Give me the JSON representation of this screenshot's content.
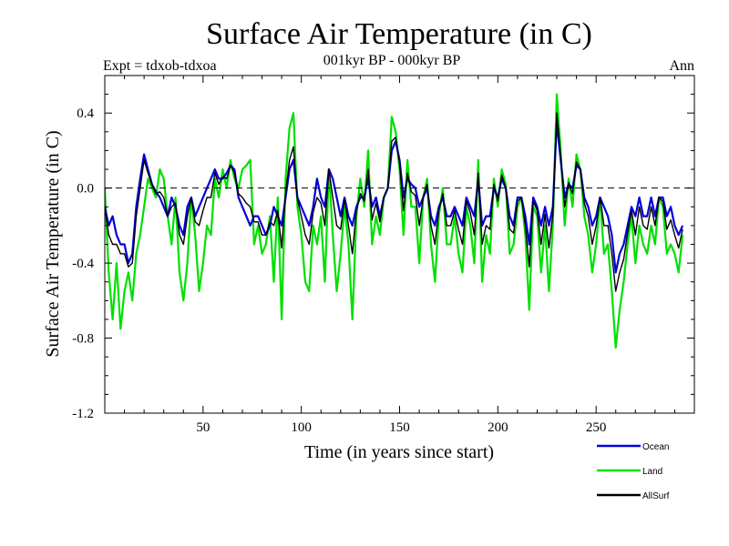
{
  "chart_data": {
    "type": "line",
    "title": "Surface Air Temperature (in C)",
    "subtitle": "001kyr BP - 000kyr BP",
    "left_label": "Expt = tdxob-tdxoa",
    "right_label": "Ann",
    "xlabel": "Time (in years since start)",
    "ylabel": "Surface Air Temperature (in C)",
    "xlim": [
      0,
      300
    ],
    "ylim": [
      -1.2,
      0.6
    ],
    "x_ticks": [
      50,
      100,
      150,
      200,
      250
    ],
    "y_ticks": [
      -1.2,
      -0.8,
      -0.4,
      0.0,
      0.4
    ],
    "y_tick_labels": [
      "-1.2",
      "-0.8",
      "-0.4",
      "0.0",
      "0.4"
    ],
    "zero_line": "dashed",
    "grid": false,
    "legend_position": "bottom-right",
    "x_start": 0,
    "x_step": 2,
    "series": [
      {
        "name": "Land",
        "color": "#00e000",
        "values": [
          0.0,
          -0.45,
          -0.7,
          -0.4,
          -0.75,
          -0.55,
          -0.45,
          -0.6,
          -0.35,
          -0.25,
          -0.1,
          0.05,
          0.0,
          -0.05,
          0.1,
          0.05,
          -0.15,
          -0.3,
          -0.05,
          -0.45,
          -0.6,
          -0.4,
          -0.05,
          -0.25,
          -0.55,
          -0.4,
          -0.2,
          -0.25,
          0.05,
          -0.05,
          0.1,
          0.0,
          0.15,
          0.05,
          0.0,
          0.1,
          0.12,
          0.15,
          -0.3,
          -0.2,
          -0.35,
          -0.3,
          -0.15,
          -0.5,
          -0.05,
          -0.7,
          0.05,
          0.32,
          0.4,
          -0.1,
          -0.25,
          -0.5,
          -0.55,
          -0.2,
          -0.3,
          -0.15,
          -0.5,
          0.1,
          -0.25,
          -0.55,
          -0.35,
          -0.1,
          -0.3,
          -0.7,
          -0.15,
          0.05,
          -0.1,
          0.2,
          -0.3,
          -0.15,
          -0.25,
          -0.05,
          0.0,
          0.38,
          0.3,
          0.1,
          -0.25,
          0.15,
          -0.1,
          -0.1,
          -0.4,
          -0.05,
          0.05,
          -0.3,
          -0.5,
          -0.15,
          0.0,
          -0.3,
          -0.3,
          -0.15,
          -0.35,
          -0.45,
          -0.1,
          -0.2,
          -0.4,
          0.15,
          -0.5,
          -0.25,
          -0.35,
          0.05,
          -0.1,
          0.1,
          0.02,
          -0.35,
          -0.3,
          -0.1,
          -0.05,
          -0.25,
          -0.65,
          -0.1,
          -0.15,
          -0.45,
          -0.2,
          -0.55,
          -0.2,
          0.5,
          0.2,
          -0.2,
          0.05,
          -0.1,
          0.18,
          0.1,
          -0.15,
          -0.25,
          -0.45,
          -0.3,
          -0.05,
          -0.35,
          -0.3,
          -0.55,
          -0.85,
          -0.65,
          -0.5,
          -0.3,
          -0.15,
          -0.4,
          -0.2,
          -0.3,
          -0.35,
          -0.2,
          -0.3,
          -0.05,
          -0.1,
          -0.35,
          -0.3,
          -0.35,
          -0.45,
          -0.25
        ]
      },
      {
        "name": "Ocean",
        "color": "#0000dd",
        "values": [
          -0.1,
          -0.2,
          -0.15,
          -0.25,
          -0.3,
          -0.3,
          -0.4,
          -0.35,
          -0.1,
          0.05,
          0.18,
          0.1,
          0.02,
          -0.02,
          -0.05,
          -0.1,
          -0.15,
          -0.05,
          -0.1,
          -0.2,
          -0.25,
          -0.1,
          -0.05,
          -0.15,
          -0.1,
          -0.05,
          0.0,
          0.05,
          0.1,
          0.05,
          0.05,
          0.08,
          0.12,
          0.1,
          -0.05,
          -0.1,
          -0.15,
          -0.2,
          -0.15,
          -0.15,
          -0.2,
          -0.25,
          -0.2,
          -0.1,
          -0.15,
          -0.2,
          -0.05,
          0.1,
          0.15,
          -0.05,
          -0.1,
          -0.15,
          -0.2,
          -0.1,
          0.05,
          -0.05,
          -0.1,
          0.1,
          0.05,
          -0.05,
          -0.15,
          -0.05,
          -0.15,
          -0.2,
          -0.1,
          -0.05,
          -0.05,
          0.05,
          -0.1,
          -0.05,
          -0.15,
          -0.05,
          0.0,
          0.2,
          0.25,
          0.15,
          -0.05,
          0.05,
          0.02,
          0.0,
          -0.1,
          -0.05,
          0.0,
          -0.15,
          -0.2,
          -0.1,
          -0.05,
          -0.15,
          -0.15,
          -0.1,
          -0.15,
          -0.2,
          -0.05,
          -0.1,
          -0.15,
          0.05,
          -0.2,
          -0.15,
          -0.15,
          0.0,
          -0.05,
          0.05,
          0.0,
          -0.15,
          -0.2,
          -0.05,
          -0.05,
          -0.15,
          -0.3,
          -0.05,
          -0.1,
          -0.2,
          -0.1,
          -0.2,
          -0.1,
          0.35,
          0.15,
          -0.05,
          0.02,
          0.0,
          0.12,
          0.1,
          -0.05,
          -0.1,
          -0.2,
          -0.15,
          -0.05,
          -0.1,
          -0.15,
          -0.25,
          -0.45,
          -0.35,
          -0.3,
          -0.2,
          -0.1,
          -0.15,
          -0.05,
          -0.15,
          -0.15,
          -0.05,
          -0.15,
          -0.05,
          -0.05,
          -0.15,
          -0.1,
          -0.2,
          -0.25,
          -0.2
        ]
      },
      {
        "name": "AllSurf",
        "color": "#000000",
        "values": [
          -0.1,
          -0.25,
          -0.3,
          -0.3,
          -0.35,
          -0.35,
          -0.42,
          -0.4,
          -0.15,
          0.0,
          0.15,
          0.08,
          0.02,
          -0.03,
          -0.02,
          -0.05,
          -0.15,
          -0.1,
          -0.08,
          -0.25,
          -0.3,
          -0.15,
          -0.05,
          -0.18,
          -0.2,
          -0.12,
          -0.05,
          -0.05,
          0.08,
          0.02,
          0.06,
          0.05,
          0.12,
          0.08,
          -0.03,
          -0.05,
          -0.08,
          -0.1,
          -0.18,
          -0.18,
          -0.25,
          -0.25,
          -0.18,
          -0.2,
          -0.12,
          -0.32,
          -0.03,
          0.15,
          0.22,
          -0.06,
          -0.15,
          -0.25,
          -0.3,
          -0.13,
          -0.05,
          -0.08,
          -0.2,
          0.1,
          -0.05,
          -0.2,
          -0.22,
          -0.06,
          -0.2,
          -0.35,
          -0.12,
          -0.03,
          -0.07,
          0.1,
          -0.17,
          -0.08,
          -0.18,
          -0.05,
          0.0,
          0.25,
          0.27,
          0.13,
          -0.12,
          0.08,
          -0.02,
          -0.04,
          -0.2,
          -0.05,
          0.02,
          -0.2,
          -0.3,
          -0.12,
          -0.03,
          -0.2,
          -0.2,
          -0.12,
          -0.22,
          -0.3,
          -0.07,
          -0.13,
          -0.25,
          0.08,
          -0.3,
          -0.2,
          -0.22,
          0.02,
          -0.07,
          0.07,
          0.0,
          -0.22,
          -0.24,
          -0.07,
          -0.05,
          -0.2,
          -0.42,
          -0.07,
          -0.12,
          -0.3,
          -0.14,
          -0.32,
          -0.14,
          0.4,
          0.17,
          -0.1,
          0.03,
          -0.03,
          0.14,
          0.1,
          -0.08,
          -0.15,
          -0.3,
          -0.2,
          -0.05,
          -0.2,
          -0.2,
          -0.35,
          -0.55,
          -0.45,
          -0.38,
          -0.24,
          -0.12,
          -0.25,
          -0.1,
          -0.2,
          -0.22,
          -0.1,
          -0.2,
          -0.05,
          -0.07,
          -0.22,
          -0.17,
          -0.25,
          -0.32,
          -0.22
        ]
      }
    ],
    "legend": [
      {
        "label": "Ocean",
        "color": "#0000dd"
      },
      {
        "label": "Land",
        "color": "#00e000"
      },
      {
        "label": "AllSurf",
        "color": "#000000"
      }
    ]
  }
}
